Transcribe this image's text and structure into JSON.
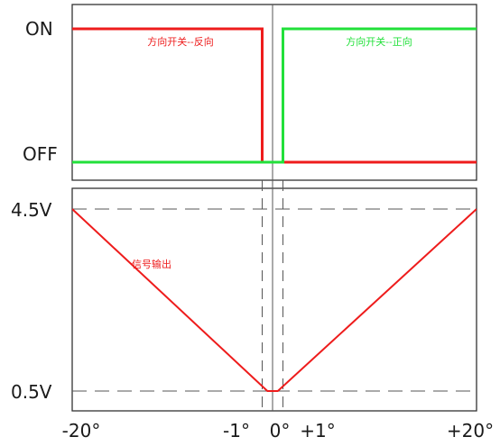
{
  "chart_data": [
    {
      "type": "line",
      "title": "",
      "xlabel": "",
      "ylabel": "",
      "yticks": [
        "ON",
        "OFF"
      ],
      "xlim": [
        -20,
        20
      ],
      "series": [
        {
          "name": "方向开关--反向",
          "color": "#ee1c1c",
          "points": [
            [
              -20,
              "ON"
            ],
            [
              -1,
              "ON"
            ],
            [
              -1,
              "OFF"
            ],
            [
              20,
              "OFF"
            ]
          ]
        },
        {
          "name": "方向开关--正向",
          "color": "#22e03a",
          "points": [
            [
              -20,
              "OFF"
            ],
            [
              1,
              "OFF"
            ],
            [
              1,
              "ON"
            ],
            [
              20,
              "ON"
            ]
          ]
        }
      ]
    },
    {
      "type": "line",
      "title": "",
      "xlabel": "",
      "ylabel": "",
      "xticks": [
        "-20°",
        "-1°",
        "0°",
        "+1°",
        "+20°"
      ],
      "xtick_values": [
        -20,
        -1,
        0,
        1,
        20
      ],
      "yticks": [
        "4.5V",
        "0.5V"
      ],
      "ytick_values": [
        4.5,
        0.5
      ],
      "xlim": [
        -20,
        20
      ],
      "ylim": [
        0.5,
        4.5
      ],
      "series": [
        {
          "name": "信号输出",
          "color": "#ee1c1c",
          "x": [
            -20,
            -0.5,
            0.5,
            20
          ],
          "y": [
            4.5,
            0.5,
            0.5,
            4.5
          ]
        }
      ]
    }
  ]
}
